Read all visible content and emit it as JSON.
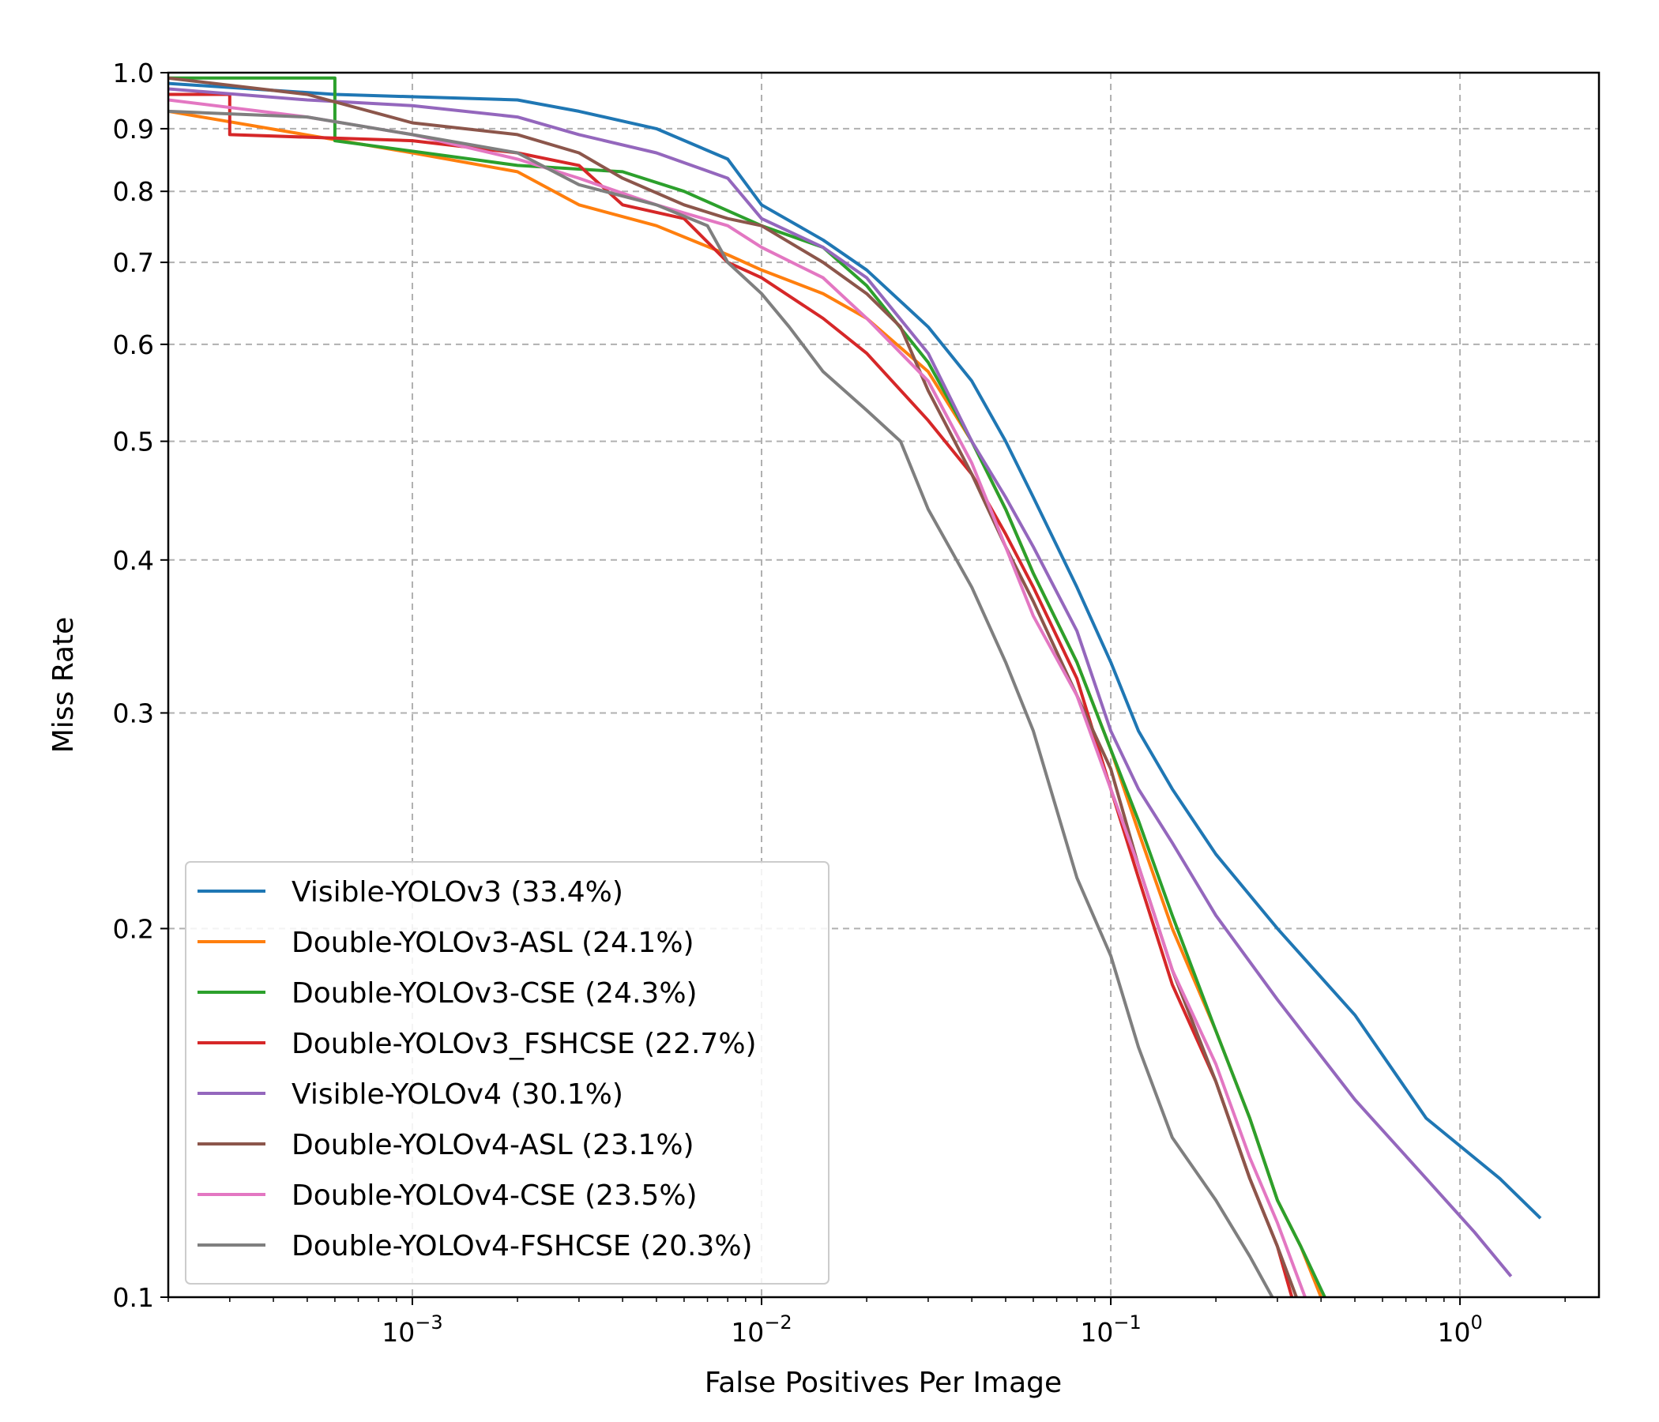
{
  "chart_data": {
    "type": "line",
    "xlabel": "False Positives Per Image",
    "ylabel": "Miss Rate",
    "xscale": "log",
    "yscale": "log",
    "xlim": [
      0.0002,
      2.5
    ],
    "ylim": [
      0.1,
      1.0
    ],
    "x_ticks": [
      {
        "value": 0.001,
        "base": "10",
        "exp": "−3"
      },
      {
        "value": 0.01,
        "base": "10",
        "exp": "−2"
      },
      {
        "value": 0.1,
        "base": "10",
        "exp": "−1"
      },
      {
        "value": 1,
        "base": "10",
        "exp": "0"
      }
    ],
    "y_ticks": [
      {
        "value": 0.1,
        "label": "0.1"
      },
      {
        "value": 0.2,
        "label": "0.2"
      },
      {
        "value": 0.3,
        "label": "0.3"
      },
      {
        "value": 0.4,
        "label": "0.4"
      },
      {
        "value": 0.5,
        "label": "0.5"
      },
      {
        "value": 0.6,
        "label": "0.6"
      },
      {
        "value": 0.7,
        "label": "0.7"
      },
      {
        "value": 0.8,
        "label": "0.8"
      },
      {
        "value": 0.9,
        "label": "0.9"
      },
      {
        "value": 1.0,
        "label": "1.0"
      }
    ],
    "grid": true,
    "legend_position": "lower-left",
    "series": [
      {
        "name": "Visible-YOLOv3 (33.4%)",
        "color": "#1f77b4",
        "points": [
          [
            0.0002,
            0.98
          ],
          [
            0.0006,
            0.96
          ],
          [
            0.002,
            0.95
          ],
          [
            0.003,
            0.93
          ],
          [
            0.005,
            0.9
          ],
          [
            0.008,
            0.85
          ],
          [
            0.01,
            0.78
          ],
          [
            0.015,
            0.73
          ],
          [
            0.02,
            0.69
          ],
          [
            0.03,
            0.62
          ],
          [
            0.04,
            0.56
          ],
          [
            0.05,
            0.5
          ],
          [
            0.06,
            0.45
          ],
          [
            0.08,
            0.38
          ],
          [
            0.1,
            0.33
          ],
          [
            0.12,
            0.29
          ],
          [
            0.15,
            0.26
          ],
          [
            0.2,
            0.23
          ],
          [
            0.3,
            0.2
          ],
          [
            0.5,
            0.17
          ],
          [
            0.8,
            0.14
          ],
          [
            1.3,
            0.125
          ],
          [
            1.7,
            0.116
          ]
        ]
      },
      {
        "name": "Double-YOLOv3-ASL (24.1%)",
        "color": "#ff7f0e",
        "points": [
          [
            0.0002,
            0.93
          ],
          [
            0.001,
            0.86
          ],
          [
            0.002,
            0.83
          ],
          [
            0.003,
            0.78
          ],
          [
            0.005,
            0.75
          ],
          [
            0.008,
            0.71
          ],
          [
            0.01,
            0.69
          ],
          [
            0.015,
            0.66
          ],
          [
            0.02,
            0.63
          ],
          [
            0.03,
            0.57
          ],
          [
            0.04,
            0.5
          ],
          [
            0.05,
            0.44
          ],
          [
            0.06,
            0.39
          ],
          [
            0.08,
            0.33
          ],
          [
            0.1,
            0.28
          ],
          [
            0.12,
            0.24
          ],
          [
            0.15,
            0.2
          ],
          [
            0.2,
            0.165
          ],
          [
            0.25,
            0.14
          ],
          [
            0.3,
            0.12
          ],
          [
            0.35,
            0.11
          ],
          [
            0.4,
            0.1
          ]
        ]
      },
      {
        "name": "Double-YOLOv3-CSE (24.3%)",
        "color": "#2ca02c",
        "points": [
          [
            0.0002,
            0.99
          ],
          [
            0.0006,
            0.99
          ],
          [
            0.0006,
            0.88
          ],
          [
            0.002,
            0.84
          ],
          [
            0.004,
            0.83
          ],
          [
            0.006,
            0.8
          ],
          [
            0.01,
            0.75
          ],
          [
            0.015,
            0.72
          ],
          [
            0.02,
            0.67
          ],
          [
            0.03,
            0.58
          ],
          [
            0.04,
            0.5
          ],
          [
            0.05,
            0.44
          ],
          [
            0.06,
            0.39
          ],
          [
            0.08,
            0.33
          ],
          [
            0.1,
            0.28
          ],
          [
            0.12,
            0.245
          ],
          [
            0.15,
            0.205
          ],
          [
            0.2,
            0.165
          ],
          [
            0.25,
            0.14
          ],
          [
            0.3,
            0.12
          ],
          [
            0.35,
            0.11
          ],
          [
            0.41,
            0.1
          ]
        ]
      },
      {
        "name": "Double-YOLOv3_FSHCSE (22.7%)",
        "color": "#d62728",
        "points": [
          [
            0.0002,
            0.96
          ],
          [
            0.0003,
            0.96
          ],
          [
            0.0003,
            0.89
          ],
          [
            0.001,
            0.88
          ],
          [
            0.002,
            0.86
          ],
          [
            0.003,
            0.84
          ],
          [
            0.004,
            0.78
          ],
          [
            0.006,
            0.76
          ],
          [
            0.008,
            0.7
          ],
          [
            0.01,
            0.68
          ],
          [
            0.015,
            0.63
          ],
          [
            0.02,
            0.59
          ],
          [
            0.03,
            0.52
          ],
          [
            0.04,
            0.47
          ],
          [
            0.05,
            0.42
          ],
          [
            0.06,
            0.38
          ],
          [
            0.08,
            0.32
          ],
          [
            0.1,
            0.26
          ],
          [
            0.12,
            0.22
          ],
          [
            0.15,
            0.18
          ],
          [
            0.2,
            0.15
          ],
          [
            0.25,
            0.125
          ],
          [
            0.3,
            0.11
          ],
          [
            0.33,
            0.1
          ]
        ]
      },
      {
        "name": "Visible-YOLOv4 (30.1%)",
        "color": "#9467bd",
        "points": [
          [
            0.0002,
            0.97
          ],
          [
            0.0005,
            0.95
          ],
          [
            0.001,
            0.94
          ],
          [
            0.002,
            0.92
          ],
          [
            0.003,
            0.89
          ],
          [
            0.005,
            0.86
          ],
          [
            0.008,
            0.82
          ],
          [
            0.01,
            0.76
          ],
          [
            0.015,
            0.72
          ],
          [
            0.02,
            0.68
          ],
          [
            0.03,
            0.59
          ],
          [
            0.04,
            0.5
          ],
          [
            0.05,
            0.45
          ],
          [
            0.06,
            0.41
          ],
          [
            0.08,
            0.35
          ],
          [
            0.1,
            0.29
          ],
          [
            0.12,
            0.26
          ],
          [
            0.15,
            0.235
          ],
          [
            0.2,
            0.205
          ],
          [
            0.3,
            0.175
          ],
          [
            0.5,
            0.145
          ],
          [
            0.8,
            0.125
          ],
          [
            1.1,
            0.113
          ],
          [
            1.4,
            0.104
          ]
        ]
      },
      {
        "name": "Double-YOLOv4-ASL (23.1%)",
        "color": "#8c564b",
        "points": [
          [
            0.0002,
            0.99
          ],
          [
            0.0005,
            0.96
          ],
          [
            0.001,
            0.91
          ],
          [
            0.002,
            0.89
          ],
          [
            0.003,
            0.86
          ],
          [
            0.004,
            0.82
          ],
          [
            0.006,
            0.78
          ],
          [
            0.008,
            0.76
          ],
          [
            0.01,
            0.75
          ],
          [
            0.015,
            0.7
          ],
          [
            0.02,
            0.66
          ],
          [
            0.025,
            0.62
          ],
          [
            0.03,
            0.55
          ],
          [
            0.04,
            0.47
          ],
          [
            0.05,
            0.41
          ],
          [
            0.06,
            0.37
          ],
          [
            0.08,
            0.31
          ],
          [
            0.1,
            0.27
          ],
          [
            0.12,
            0.225
          ],
          [
            0.15,
            0.185
          ],
          [
            0.2,
            0.15
          ],
          [
            0.25,
            0.125
          ],
          [
            0.3,
            0.11
          ],
          [
            0.34,
            0.1
          ]
        ]
      },
      {
        "name": "Double-YOLOv4-CSE (23.5%)",
        "color": "#e377c2",
        "points": [
          [
            0.0002,
            0.95
          ],
          [
            0.0005,
            0.92
          ],
          [
            0.001,
            0.89
          ],
          [
            0.002,
            0.85
          ],
          [
            0.003,
            0.82
          ],
          [
            0.005,
            0.78
          ],
          [
            0.008,
            0.75
          ],
          [
            0.01,
            0.72
          ],
          [
            0.015,
            0.68
          ],
          [
            0.02,
            0.63
          ],
          [
            0.03,
            0.56
          ],
          [
            0.04,
            0.48
          ],
          [
            0.05,
            0.41
          ],
          [
            0.06,
            0.36
          ],
          [
            0.08,
            0.31
          ],
          [
            0.1,
            0.26
          ],
          [
            0.12,
            0.225
          ],
          [
            0.15,
            0.185
          ],
          [
            0.2,
            0.155
          ],
          [
            0.25,
            0.13
          ],
          [
            0.3,
            0.115
          ],
          [
            0.36,
            0.1
          ]
        ]
      },
      {
        "name": "Double-YOLOv4-FSHCSE (20.3%)",
        "color": "#7f7f7f",
        "points": [
          [
            0.0002,
            0.93
          ],
          [
            0.0005,
            0.92
          ],
          [
            0.001,
            0.89
          ],
          [
            0.002,
            0.86
          ],
          [
            0.003,
            0.81
          ],
          [
            0.005,
            0.78
          ],
          [
            0.007,
            0.75
          ],
          [
            0.008,
            0.7
          ],
          [
            0.01,
            0.66
          ],
          [
            0.012,
            0.62
          ],
          [
            0.015,
            0.57
          ],
          [
            0.02,
            0.53
          ],
          [
            0.025,
            0.5
          ],
          [
            0.03,
            0.44
          ],
          [
            0.04,
            0.38
          ],
          [
            0.05,
            0.33
          ],
          [
            0.06,
            0.29
          ],
          [
            0.08,
            0.22
          ],
          [
            0.1,
            0.19
          ],
          [
            0.12,
            0.16
          ],
          [
            0.15,
            0.135
          ],
          [
            0.2,
            0.12
          ],
          [
            0.25,
            0.108
          ],
          [
            0.29,
            0.1
          ]
        ]
      }
    ]
  }
}
